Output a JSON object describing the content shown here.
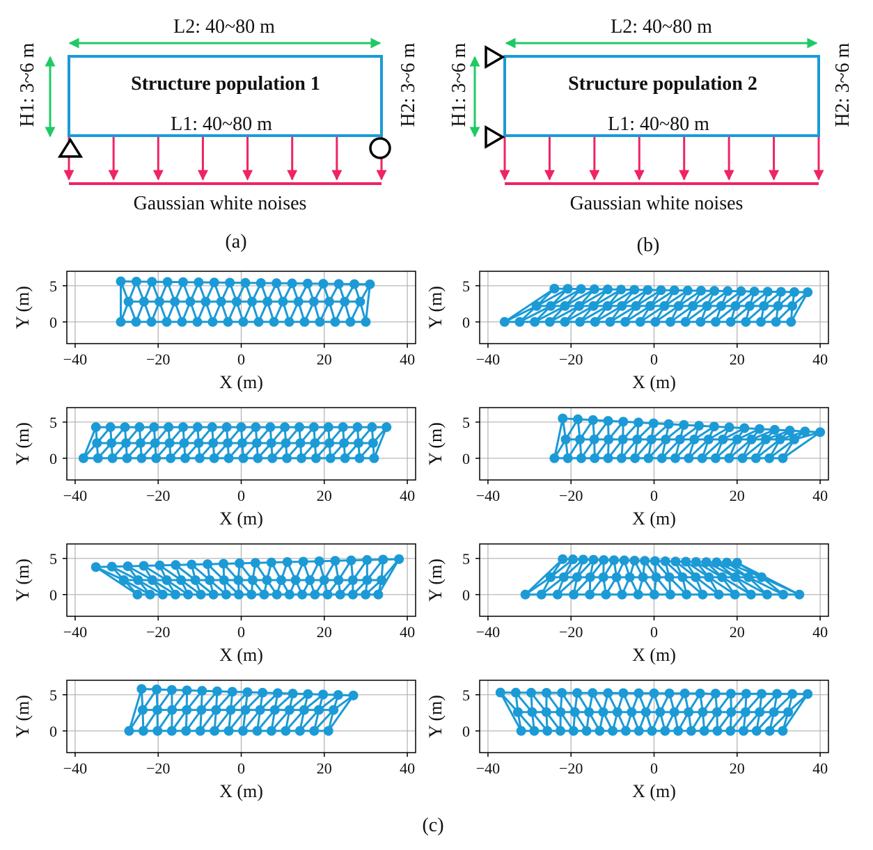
{
  "colors": {
    "blue": "#1b9ad6",
    "pink": "#ee2463",
    "green": "#1fca64",
    "black": "#000000",
    "grid": "#b0b0b0"
  },
  "panel_a": {
    "title": "Structure population 1",
    "top_dim": "L2: 40~80 m",
    "bottom_dim": "L1: 40~80 m",
    "left_dim": "H1: 3~6 m",
    "right_dim": "H2: 3~6 m",
    "load_label": "Gaussian white noises",
    "caption": "(a)",
    "supports": "pin-left, roller-right"
  },
  "panel_b": {
    "title": "Structure population 2",
    "top_dim": "L2: 40~80 m",
    "bottom_dim": "L1: 40~80 m",
    "left_dim": "H1: 3~6 m",
    "right_dim": "H2: 3~6 m",
    "load_label": "Gaussian white noises",
    "caption": "(b)",
    "supports": "two-pins-left"
  },
  "panel_c": {
    "caption": "(c)"
  },
  "chart_data": [
    {
      "type": "scatter",
      "xlabel": "X (m)",
      "ylabel": "Y (m)",
      "xlim": [
        -42,
        42
      ],
      "ylim": [
        -3,
        7
      ],
      "xticks": [
        "−40",
        "−20",
        "0",
        "20",
        "40"
      ],
      "yticks": [
        "0",
        "5"
      ],
      "grid": true,
      "bottom": [
        -29,
        30
      ],
      "top": [
        -29,
        31
      ],
      "top_y_start": 5.6,
      "top_y_end": 5.2,
      "h_mid": 2.8,
      "bays": 16
    },
    {
      "type": "scatter",
      "xlabel": "X (m)",
      "ylabel": "Y (m)",
      "xlim": [
        -42,
        42
      ],
      "ylim": [
        -3,
        7
      ],
      "xticks": [
        "−40",
        "−20",
        "0",
        "20",
        "40"
      ],
      "yticks": [
        "0",
        "5"
      ],
      "grid": true,
      "bottom": [
        -36,
        33
      ],
      "top": [
        -24,
        37
      ],
      "top_y_start": 4.6,
      "top_y_end": 4.1,
      "h_mid": 2.2,
      "bays": 19
    },
    {
      "type": "scatter",
      "xlabel": "X (m)",
      "ylabel": "Y (m)",
      "xlim": [
        -42,
        42
      ],
      "ylim": [
        -3,
        7
      ],
      "xticks": [
        "−40",
        "−20",
        "0",
        "20",
        "40"
      ],
      "yticks": [
        "0",
        "5"
      ],
      "grid": true,
      "bottom": [
        -38,
        32
      ],
      "top": [
        -35,
        35
      ],
      "top_y_start": 4.3,
      "top_y_end": 4.3,
      "h_mid": 2.1,
      "bays": 20
    },
    {
      "type": "scatter",
      "xlabel": "X (m)",
      "ylabel": "Y (m)",
      "xlim": [
        -42,
        42
      ],
      "ylim": [
        -3,
        7
      ],
      "xticks": [
        "−40",
        "−20",
        "0",
        "20",
        "40"
      ],
      "yticks": [
        "0",
        "5"
      ],
      "grid": true,
      "bottom": [
        -24,
        31
      ],
      "top": [
        -22,
        40
      ],
      "top_y_start": 5.5,
      "top_y_end": 3.6,
      "h_mid": 2.6,
      "bays": 17
    },
    {
      "type": "scatter",
      "xlabel": "X (m)",
      "ylabel": "Y (m)",
      "xlim": [
        -42,
        42
      ],
      "ylim": [
        -3,
        7
      ],
      "xticks": [
        "−40",
        "−20",
        "0",
        "20",
        "40"
      ],
      "yticks": [
        "0",
        "5"
      ],
      "grid": true,
      "bottom": [
        -25,
        33
      ],
      "top": [
        -35,
        38
      ],
      "top_y_start": 3.8,
      "top_y_end": 4.9,
      "h_mid": 2.0,
      "bays": 19
    },
    {
      "type": "scatter",
      "xlabel": "X (m)",
      "ylabel": "Y (m)",
      "xlim": [
        -42,
        42
      ],
      "ylim": [
        -3,
        7
      ],
      "xticks": [
        "−40",
        "−20",
        "0",
        "20",
        "40"
      ],
      "yticks": [
        "0",
        "5"
      ],
      "grid": true,
      "bottom": [
        -31,
        35
      ],
      "top": [
        -22,
        20
      ],
      "top_y_start": 4.9,
      "top_y_end": 4.4,
      "h_mid": 2.4,
      "bays": 17
    },
    {
      "type": "scatter",
      "xlabel": "X (m)",
      "ylabel": "Y (m)",
      "xlim": [
        -42,
        42
      ],
      "ylim": [
        -3,
        7
      ],
      "xticks": [
        "−40",
        "−20",
        "0",
        "20",
        "40"
      ],
      "yticks": [
        "0",
        "5"
      ],
      "grid": true,
      "bottom": [
        -27,
        21
      ],
      "top": [
        -24,
        27
      ],
      "top_y_start": 5.8,
      "top_y_end": 4.9,
      "h_mid": 2.9,
      "bays": 14
    },
    {
      "type": "scatter",
      "xlabel": "X (m)",
      "ylabel": "Y (m)",
      "xlim": [
        -42,
        42
      ],
      "ylim": [
        -3,
        7
      ],
      "xticks": [
        "−40",
        "−20",
        "0",
        "20",
        "40"
      ],
      "yticks": [
        "0",
        "5"
      ],
      "grid": true,
      "bottom": [
        -32,
        31
      ],
      "top": [
        -37,
        37
      ],
      "top_y_start": 5.3,
      "top_y_end": 5.1,
      "h_mid": 2.6,
      "bays": 20
    }
  ]
}
